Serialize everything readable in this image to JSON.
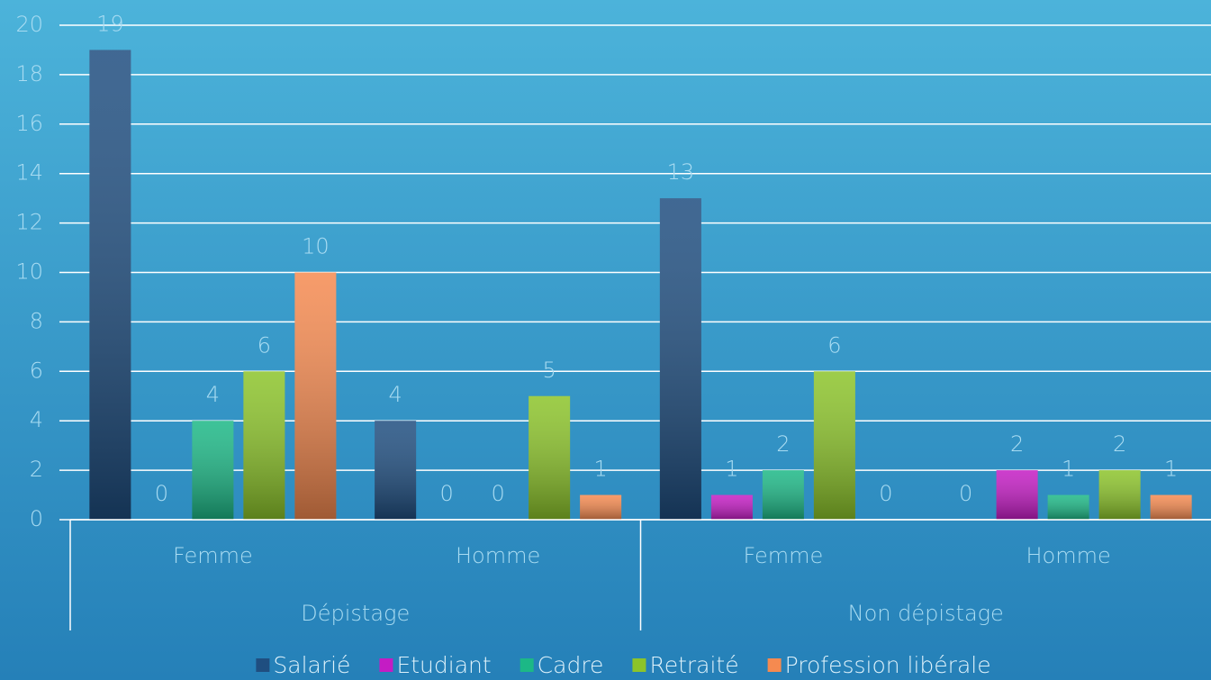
{
  "chart_data": {
    "type": "bar",
    "groups": [
      {
        "name": "Dépistage",
        "categories": [
          "Femme",
          "Homme"
        ]
      },
      {
        "name": "Non dépistage",
        "categories": [
          "Femme",
          "Homme"
        ]
      }
    ],
    "series": [
      {
        "name": "Salarié",
        "color": "#1f4e80",
        "values": [
          19,
          4,
          13,
          0
        ]
      },
      {
        "name": "Etudiant",
        "color": "#c41cc4",
        "values": [
          0,
          0,
          1,
          2
        ]
      },
      {
        "name": "Cadre",
        "color": "#1cb886",
        "values": [
          4,
          0,
          2,
          1
        ]
      },
      {
        "name": "Retraité",
        "color": "#8cc42a",
        "values": [
          6,
          5,
          6,
          2
        ]
      },
      {
        "name": "Profession libérale",
        "color": "#f58a50",
        "values": [
          10,
          1,
          0,
          1
        ]
      }
    ],
    "ylim": [
      0,
      20
    ],
    "yticks": [
      0,
      2,
      4,
      6,
      8,
      10,
      12,
      14,
      16,
      18,
      20
    ],
    "grid": true,
    "legend": "bottom"
  }
}
